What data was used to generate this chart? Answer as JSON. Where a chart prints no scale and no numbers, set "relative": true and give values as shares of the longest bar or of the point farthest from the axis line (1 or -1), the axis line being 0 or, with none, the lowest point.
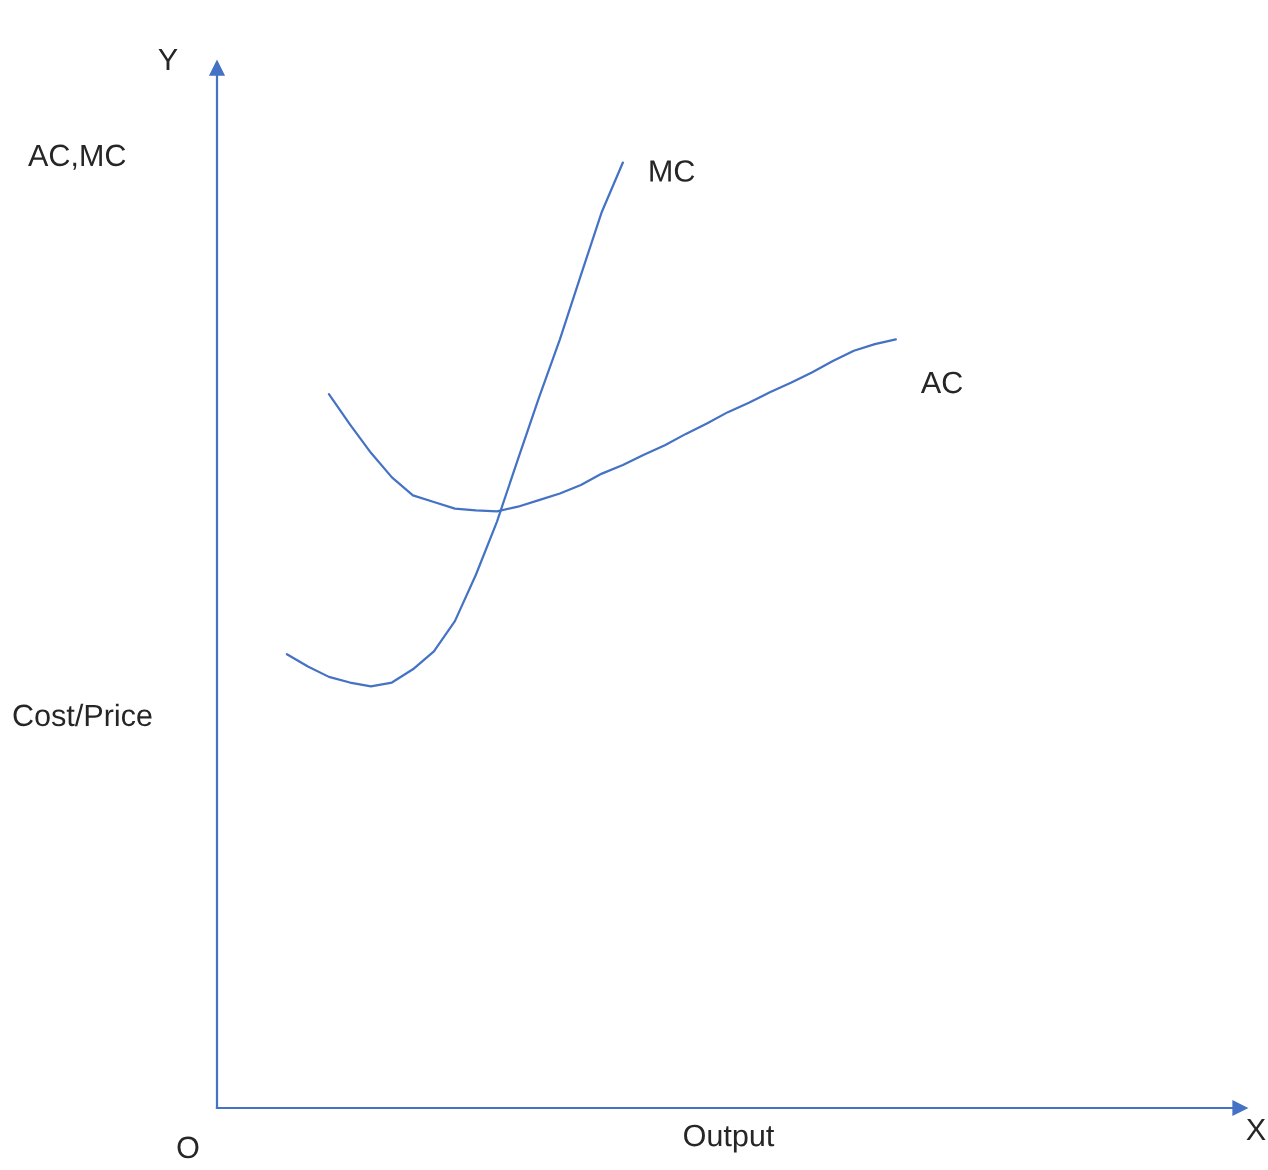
{
  "chart_data": {
    "type": "line",
    "relative": true,
    "xlabel": "Output",
    "ylabel": "Cost/Price",
    "annotations": [
      "AC,MC",
      "Y",
      "X",
      "O"
    ],
    "legend": false,
    "marker": "none",
    "line_style": "solid",
    "categories": [
      null,
      null,
      null,
      null,
      null,
      null,
      null,
      null,
      null,
      null,
      null,
      null,
      null,
      null,
      null,
      null,
      null,
      null,
      null,
      null,
      null,
      null,
      null,
      null,
      null,
      null,
      null,
      null,
      null,
      null
    ],
    "series": [
      {
        "name": "MC",
        "color": "#4472c4",
        "values": [
          0.48,
          0.467,
          0.456,
          0.45,
          0.446,
          0.45,
          0.464,
          0.483,
          0.515,
          0.564,
          0.62,
          0.686,
          0.751,
          0.813,
          0.881,
          0.948,
          1.0,
          null,
          null,
          null,
          null,
          null,
          null,
          null,
          null,
          null,
          null,
          null,
          null,
          null
        ]
      },
      {
        "name": "AC",
        "color": "#4472c4",
        "values": [
          null,
          null,
          0.755,
          0.723,
          0.693,
          0.667,
          0.648,
          0.641,
          0.634,
          0.632,
          0.631,
          0.636,
          0.643,
          0.65,
          0.659,
          0.671,
          0.68,
          0.691,
          0.701,
          0.713,
          0.724,
          0.736,
          0.746,
          0.757,
          0.767,
          0.778,
          0.79,
          0.801,
          0.808,
          0.813
        ]
      }
    ]
  }
}
